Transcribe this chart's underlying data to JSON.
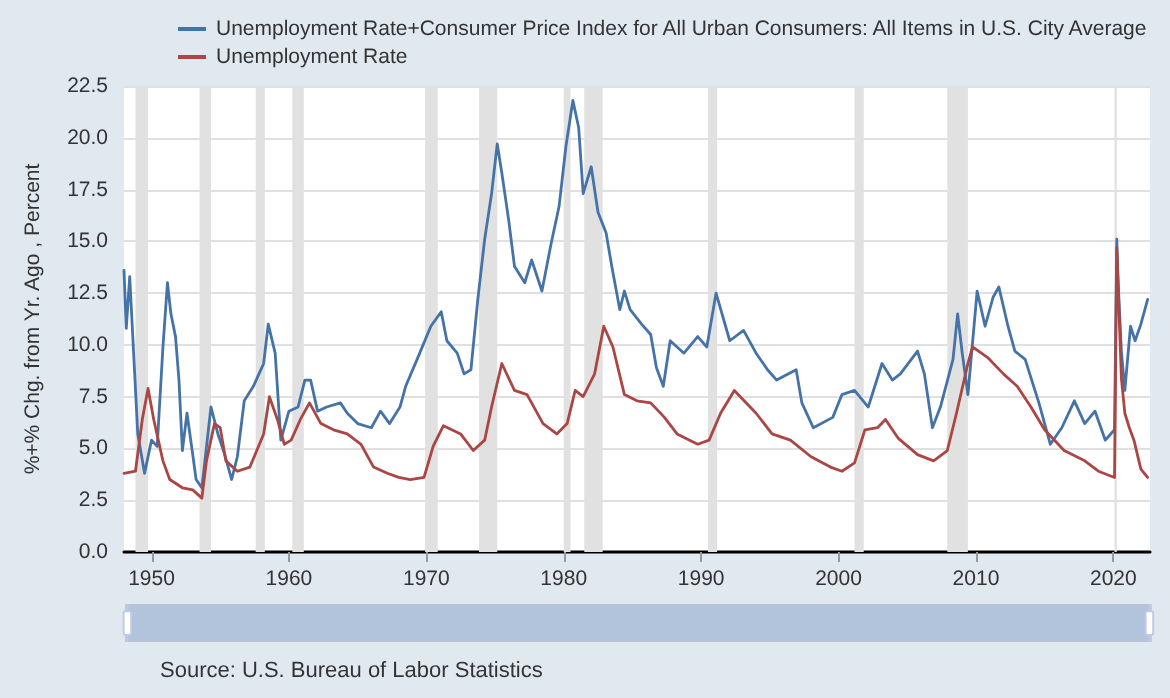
{
  "chart_data": {
    "type": "line",
    "ylabel": "%+% Chg. from Yr. Ago , Percent",
    "annotations": [
      "Source: U.S. Bureau of Labor Statistics"
    ],
    "legend": "top left",
    "grid": "y",
    "xlim": [
      "1948-01",
      "2022-09"
    ],
    "xticks": [
      "1950",
      "1960",
      "1970",
      "1980",
      "1990",
      "2000",
      "2010",
      "2020"
    ],
    "ylim": [
      0,
      22.5
    ],
    "yticks": [
      {
        "value": 0,
        "label": "0.0"
      },
      {
        "value": 2.5,
        "label": "2.5"
      },
      {
        "value": 5,
        "label": "5.0"
      },
      {
        "value": 7.5,
        "label": "7.5"
      },
      {
        "value": 10,
        "label": "10.0"
      },
      {
        "value": 12.5,
        "label": "12.5"
      },
      {
        "value": 15,
        "label": "15.0"
      },
      {
        "value": 17.5,
        "label": "17.5"
      },
      {
        "value": 20,
        "label": "20.0"
      },
      {
        "value": 22.5,
        "label": "22.5"
      }
    ],
    "bands": [
      {
        "axis": "x",
        "from": "1948-11",
        "to": "1949-10",
        "color": "#e1e1e1"
      },
      {
        "axis": "x",
        "from": "1953-07",
        "to": "1954-05",
        "color": "#e1e1e1"
      },
      {
        "axis": "x",
        "from": "1957-08",
        "to": "1958-04",
        "color": "#e1e1e1"
      },
      {
        "axis": "x",
        "from": "1960-04",
        "to": "1961-02",
        "color": "#e1e1e1"
      },
      {
        "axis": "x",
        "from": "1969-12",
        "to": "1970-11",
        "color": "#e1e1e1"
      },
      {
        "axis": "x",
        "from": "1973-11",
        "to": "1975-03",
        "color": "#e1e1e1"
      },
      {
        "axis": "x",
        "from": "1980-01",
        "to": "1980-07",
        "color": "#e1e1e1"
      },
      {
        "axis": "x",
        "from": "1981-07",
        "to": "1982-11",
        "color": "#e1e1e1"
      },
      {
        "axis": "x",
        "from": "1990-07",
        "to": "1991-03",
        "color": "#e1e1e1"
      },
      {
        "axis": "x",
        "from": "2001-03",
        "to": "2001-11",
        "color": "#e1e1e1"
      },
      {
        "axis": "x",
        "from": "2007-12",
        "to": "2009-06",
        "color": "#e1e1e1"
      },
      {
        "axis": "x",
        "from": "2020-02",
        "to": "2020-04",
        "color": "#e1e1e1"
      }
    ],
    "series": [
      {
        "name": "Unemployment Rate+Consumer Price Index for All Urban Consumers: All Items in U.S. City Average",
        "color": "#4572a7",
        "x": [
          "1948-01",
          "1948-03",
          "1948-06",
          "1949-01",
          "1949-07",
          "1950-01",
          "1950-06",
          "1950-11",
          "1951-03",
          "1951-06",
          "1951-10",
          "1952-01",
          "1952-04",
          "1952-08",
          "1953-01",
          "1953-04",
          "1953-09",
          "1954-05",
          "1954-11",
          "1955-05",
          "1955-11",
          "1956-04",
          "1956-10",
          "1957-06",
          "1958-03",
          "1958-07",
          "1959-01",
          "1959-06",
          "1960-01",
          "1960-09",
          "1961-03",
          "1961-08",
          "1962-02",
          "1962-10",
          "1963-10",
          "1964-04",
          "1965-01",
          "1966-01",
          "1966-09",
          "1967-05",
          "1968-02",
          "1968-07",
          "1969-05",
          "1970-05",
          "1971-02",
          "1971-07",
          "1972-04",
          "1972-10",
          "1973-04",
          "1973-10",
          "1974-04",
          "1974-10",
          "1975-03",
          "1975-07",
          "1976-01",
          "1976-06",
          "1977-03",
          "1977-09",
          "1978-06",
          "1979-02",
          "1979-09",
          "1980-03",
          "1980-09",
          "1981-02",
          "1981-06",
          "1982-01",
          "1982-07",
          "1983-02",
          "1983-07",
          "1984-02",
          "1984-06",
          "1984-11",
          "1985-09",
          "1986-05",
          "1986-10",
          "1987-04",
          "1987-10",
          "1988-10",
          "1989-10",
          "1990-06",
          "1991-02",
          "1992-02",
          "1993-02",
          "1994-01",
          "1994-11",
          "1995-07",
          "1996-12",
          "1997-05",
          "1998-03",
          "1999-08",
          "2000-04",
          "2001-03",
          "2002-03",
          "2003-03",
          "2003-12",
          "2004-07",
          "2005-10",
          "2006-04",
          "2006-11",
          "2007-06",
          "2008-05",
          "2008-09",
          "2009-01",
          "2009-06",
          "2010-02",
          "2010-09",
          "2011-04",
          "2011-09",
          "2012-05",
          "2012-11",
          "2013-08",
          "2014-08",
          "2015-06",
          "2016-04",
          "2017-03",
          "2017-12",
          "2018-09",
          "2019-06",
          "2020-02",
          "2020-04",
          "2020-05",
          "2020-08",
          "2020-11",
          "2021-04",
          "2021-08",
          "2022-01",
          "2022-07"
        ],
        "values": [
          13.6,
          10.8,
          13.3,
          5.7,
          3.8,
          5.4,
          5.1,
          9.9,
          13.0,
          11.5,
          10.4,
          8.3,
          4.9,
          6.7,
          4.7,
          3.5,
          3.1,
          7.0,
          5.7,
          4.7,
          3.5,
          4.6,
          7.3,
          8.0,
          9.1,
          11.0,
          9.6,
          5.4,
          6.8,
          7.0,
          8.3,
          8.3,
          6.8,
          7.0,
          7.2,
          6.7,
          6.2,
          6.0,
          6.8,
          6.2,
          7.0,
          8.0,
          9.3,
          10.9,
          11.6,
          10.2,
          9.6,
          8.6,
          8.8,
          12.2,
          15.1,
          17.3,
          19.7,
          18.3,
          16.0,
          13.8,
          13.0,
          14.1,
          12.6,
          14.9,
          16.7,
          19.6,
          21.8,
          20.5,
          17.3,
          18.6,
          16.4,
          15.4,
          13.8,
          11.7,
          12.6,
          11.7,
          11.0,
          10.5,
          8.9,
          8.0,
          10.2,
          9.6,
          10.4,
          9.9,
          12.5,
          10.2,
          10.7,
          9.6,
          8.8,
          8.3,
          8.8,
          7.2,
          6.0,
          6.5,
          7.6,
          7.8,
          7.0,
          9.1,
          8.3,
          8.6,
          9.7,
          8.6,
          6.0,
          7.0,
          9.3,
          11.5,
          9.6,
          7.6,
          12.6,
          10.9,
          12.3,
          12.8,
          10.9,
          9.7,
          9.3,
          7.2,
          5.2,
          6.0,
          7.3,
          6.2,
          6.8,
          5.4,
          5.9,
          15.1,
          13.3,
          9.7,
          7.8,
          10.9,
          10.2,
          11.0,
          12.2
        ]
      },
      {
        "name": "Unemployment Rate",
        "color": "#aa4643",
        "x": [
          "1948-01",
          "1948-11",
          "1949-05",
          "1949-10",
          "1950-03",
          "1950-11",
          "1951-05",
          "1952-04",
          "1953-01",
          "1953-09",
          "1954-01",
          "1954-08",
          "1955-01",
          "1955-06",
          "1956-04",
          "1957-03",
          "1958-03",
          "1958-08",
          "1959-03",
          "1959-09",
          "1960-03",
          "1960-11",
          "1961-07",
          "1962-05",
          "1963-04",
          "1964-04",
          "1965-04",
          "1966-03",
          "1967-03",
          "1968-01",
          "1968-11",
          "1969-11",
          "1970-07",
          "1971-04",
          "1972-07",
          "1973-06",
          "1974-04",
          "1974-10",
          "1975-07",
          "1976-06",
          "1977-05",
          "1978-07",
          "1979-07",
          "1980-04",
          "1980-11",
          "1981-06",
          "1982-04",
          "1982-12",
          "1983-08",
          "1984-06",
          "1985-05",
          "1986-05",
          "1987-05",
          "1988-04",
          "1989-10",
          "1990-08",
          "1991-06",
          "1992-06",
          "1994-01",
          "1995-03",
          "1996-07",
          "1998-01",
          "1999-06",
          "2000-04",
          "2001-03",
          "2001-12",
          "2002-11",
          "2003-06",
          "2004-05",
          "2005-10",
          "2006-12",
          "2007-12",
          "2008-08",
          "2009-06",
          "2009-10",
          "2010-11",
          "2012-01",
          "2013-01",
          "2014-01",
          "2015-01",
          "2016-06",
          "2017-12",
          "2018-12",
          "2020-02",
          "2020-04",
          "2020-05",
          "2020-08",
          "2020-11",
          "2021-03",
          "2021-07",
          "2022-01",
          "2022-07"
        ],
        "values": [
          3.8,
          3.9,
          6.4,
          7.9,
          6.4,
          4.4,
          3.5,
          3.1,
          3.0,
          2.6,
          4.4,
          6.2,
          6.0,
          4.4,
          3.9,
          4.1,
          5.7,
          7.5,
          6.4,
          5.2,
          5.4,
          6.4,
          7.2,
          6.2,
          5.9,
          5.7,
          5.2,
          4.1,
          3.8,
          3.6,
          3.5,
          3.6,
          5.1,
          6.1,
          5.7,
          4.9,
          5.4,
          7.0,
          9.1,
          7.8,
          7.6,
          6.2,
          5.7,
          6.2,
          7.8,
          7.5,
          8.6,
          10.9,
          9.9,
          7.6,
          7.3,
          7.2,
          6.5,
          5.7,
          5.2,
          5.4,
          6.7,
          7.8,
          6.7,
          5.7,
          5.4,
          4.6,
          4.1,
          3.9,
          4.3,
          5.9,
          6.0,
          6.4,
          5.5,
          4.7,
          4.4,
          4.9,
          6.7,
          9.1,
          9.9,
          9.4,
          8.6,
          8.0,
          7.0,
          5.9,
          4.9,
          4.4,
          3.9,
          3.6,
          14.7,
          13.2,
          8.4,
          6.7,
          6.0,
          5.4,
          4.0,
          3.6
        ]
      }
    ]
  }
}
